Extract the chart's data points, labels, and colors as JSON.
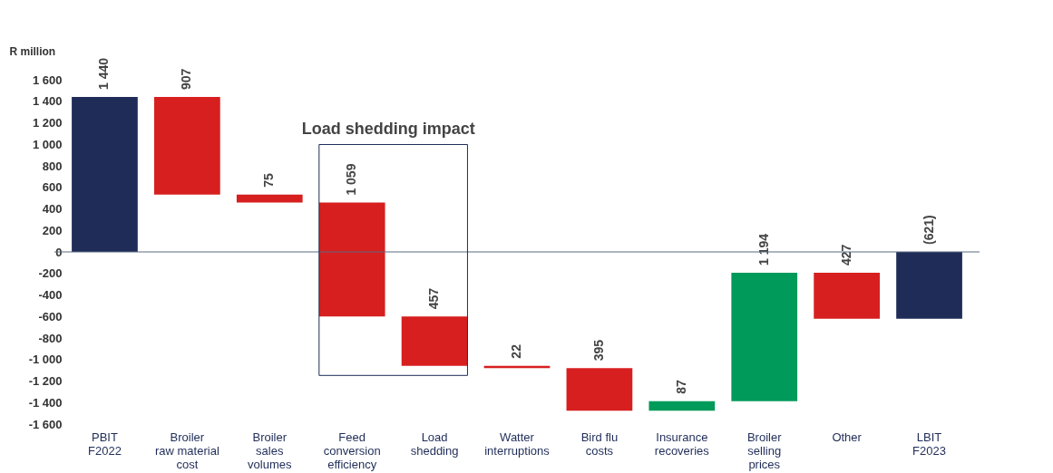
{
  "chart_data": {
    "type": "bar",
    "ylabel": "R million",
    "categories": [
      "PBIT\nF2022",
      "Broiler\nraw material\ncost",
      "Broiler\nsales\nvolumes",
      "Feed\nconversion\nefficiency",
      "Load\nshedding",
      "Watter\ninterruptions",
      "Bird flu\ncosts",
      "Insurance\nrecoveries",
      "Broiler\nselling\nprices",
      "Other",
      "LBIT\nF2023"
    ],
    "values": [
      1440,
      -907,
      -75,
      -1059,
      -457,
      -22,
      -395,
      87,
      1194,
      -427,
      -621
    ],
    "base": [
      0,
      1440,
      533,
      458,
      -601,
      -1058,
      -1080,
      -1475,
      -1388,
      -194,
      0
    ],
    "colors": [
      "#1f2c58",
      "#d71f1f",
      "#d71f1f",
      "#d71f1f",
      "#d71f1f",
      "#d71f1f",
      "#d71f1f",
      "#009a5a",
      "#009a5a",
      "#d71f1f",
      "#1f2c58"
    ],
    "value_labels": [
      "1 440",
      "907",
      "75",
      "1 059",
      "457",
      "22",
      "395",
      "87",
      "1 194",
      "427",
      "(621)"
    ],
    "ylim": [
      -1600,
      1600
    ],
    "yticks": [
      {
        "value": -1600,
        "label": "-1 600"
      },
      {
        "value": -1400,
        "label": "-1 400"
      },
      {
        "value": -1200,
        "label": "-1 200"
      },
      {
        "value": -1000,
        "label": "-1 000"
      },
      -800,
      -600,
      -400,
      -200,
      0,
      200,
      400,
      600,
      800,
      {
        "value": 1000,
        "label": "1 000"
      },
      {
        "value": 1200,
        "label": "1 200"
      },
      {
        "value": 1400,
        "label": "1 400"
      },
      {
        "value": 1600,
        "label": "1 600"
      }
    ],
    "ref_lines": [
      {
        "axis": "y",
        "value": 0,
        "color": "#5a6a80"
      }
    ],
    "annotations": [
      "Load shedding impact"
    ],
    "grid": false
  }
}
